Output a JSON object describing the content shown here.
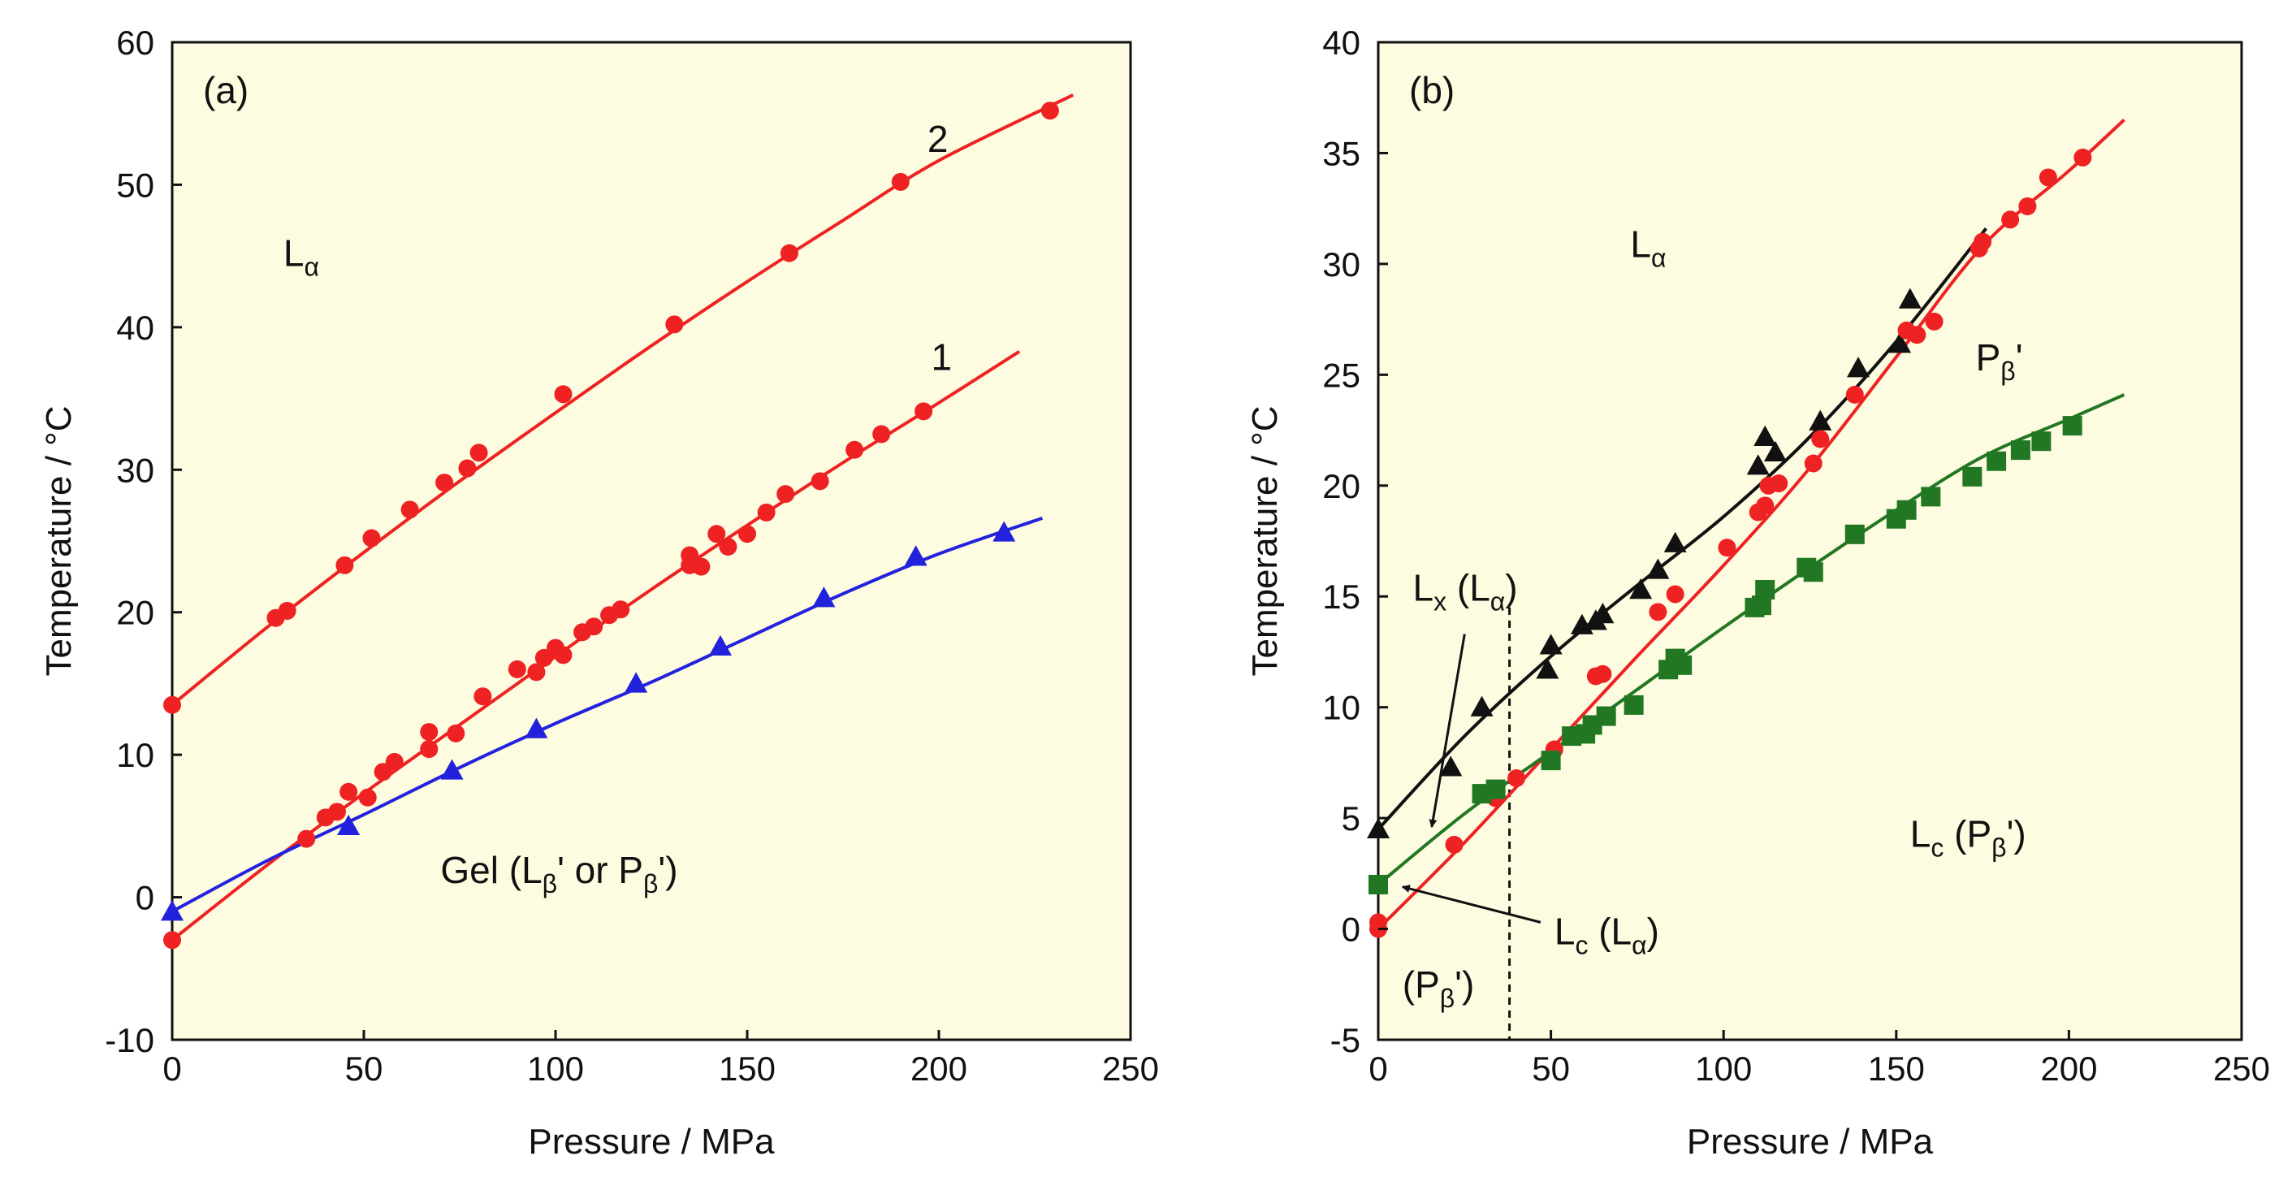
{
  "chart_data": [
    {
      "type": "scatter",
      "panel_label": "(a)",
      "xlabel": "Pressure / MPa",
      "ylabel": "Temperature / °C",
      "xlim": [
        0,
        250
      ],
      "ylim": [
        -10,
        60
      ],
      "x_ticks": [
        0,
        50,
        100,
        150,
        200,
        250
      ],
      "y_ticks": [
        -10,
        0,
        10,
        20,
        30,
        40,
        50,
        60
      ],
      "plot_background": "#fdfbe0",
      "series": [
        {
          "name": "2",
          "color": "#ee2222",
          "marker": "circle",
          "points": [
            [
              0,
              13.5
            ],
            [
              27,
              19.6
            ],
            [
              30,
              20.1
            ],
            [
              45,
              23.3
            ],
            [
              52,
              25.2
            ],
            [
              62,
              27.2
            ],
            [
              71,
              29.1
            ],
            [
              77,
              30.1
            ],
            [
              80,
              31.2
            ],
            [
              102,
              35.3
            ],
            [
              131,
              40.2
            ],
            [
              161,
              45.2
            ],
            [
              190,
              50.2
            ],
            [
              229,
              55.2
            ]
          ],
          "fit": [
            [
              0,
              13.5
            ],
            [
              25,
              19.0
            ],
            [
              50,
              24.2
            ],
            [
              75,
              29.2
            ],
            [
              100,
              34.0
            ],
            [
              125,
              38.7
            ],
            [
              150,
              43.2
            ],
            [
              175,
              47.5
            ],
            [
              200,
              51.7
            ],
            [
              235,
              56.3
            ]
          ]
        },
        {
          "name": "1",
          "color": "#ee2222",
          "marker": "circle",
          "points": [
            [
              0,
              -3.0
            ],
            [
              35,
              4.1
            ],
            [
              40,
              5.6
            ],
            [
              43,
              6.0
            ],
            [
              46,
              7.4
            ],
            [
              51,
              7.0
            ],
            [
              55,
              8.8
            ],
            [
              58,
              9.5
            ],
            [
              67,
              10.4
            ],
            [
              67,
              11.6
            ],
            [
              74,
              11.5
            ],
            [
              81,
              14.1
            ],
            [
              90,
              16.0
            ],
            [
              95,
              15.8
            ],
            [
              97,
              16.8
            ],
            [
              100,
              17.5
            ],
            [
              102,
              17.0
            ],
            [
              107,
              18.6
            ],
            [
              110,
              19.0
            ],
            [
              114,
              19.8
            ],
            [
              117,
              20.2
            ],
            [
              135,
              23.3
            ],
            [
              135,
              24.0
            ],
            [
              138,
              23.2
            ],
            [
              142,
              25.5
            ],
            [
              145,
              24.6
            ],
            [
              150,
              25.5
            ],
            [
              155,
              27.0
            ],
            [
              160,
              28.3
            ],
            [
              169,
              29.2
            ],
            [
              178,
              31.4
            ],
            [
              185,
              32.5
            ],
            [
              196,
              34.1
            ]
          ],
          "fit": [
            [
              0,
              -3.0
            ],
            [
              25,
              2.3
            ],
            [
              50,
              7.3
            ],
            [
              75,
              12.1
            ],
            [
              100,
              16.9
            ],
            [
              125,
              21.6
            ],
            [
              150,
              26.1
            ],
            [
              175,
              30.5
            ],
            [
              200,
              34.7
            ],
            [
              221,
              38.3
            ]
          ]
        },
        {
          "name": "",
          "color": "#2222dd",
          "marker": "triangle",
          "points": [
            [
              0,
              -1.0
            ],
            [
              46,
              5.0
            ],
            [
              73,
              8.9
            ],
            [
              95,
              11.8
            ],
            [
              121,
              15.0
            ],
            [
              143,
              17.6
            ],
            [
              170,
              21.0
            ],
            [
              194,
              23.9
            ],
            [
              217,
              25.6
            ]
          ],
          "fit": [
            [
              0,
              -1.0
            ],
            [
              25,
              2.6
            ],
            [
              50,
              5.8
            ],
            [
              75,
              9.1
            ],
            [
              100,
              12.2
            ],
            [
              125,
              15.1
            ],
            [
              150,
              18.2
            ],
            [
              175,
              21.3
            ],
            [
              200,
              24.1
            ],
            [
              227,
              26.6
            ]
          ]
        }
      ],
      "annotations": {
        "series_2_label": "2",
        "series_1_label": "1",
        "phase_top_main": "L",
        "phase_top_sub": "α",
        "phase_bottom_prefix": "Gel (L",
        "phase_bottom_sub1": "β",
        "phase_bottom_mid": "' or P",
        "phase_bottom_sub2": "β",
        "phase_bottom_suffix": "')"
      }
    },
    {
      "type": "scatter",
      "panel_label": "(b)",
      "xlabel": "Pressure / MPa",
      "ylabel": "Temperature / °C",
      "xlim": [
        0,
        250
      ],
      "ylim": [
        -5,
        40
      ],
      "x_ticks": [
        0,
        50,
        100,
        150,
        200,
        250
      ],
      "y_ticks": [
        -5,
        0,
        5,
        10,
        15,
        20,
        25,
        30,
        35,
        40
      ],
      "plot_background": "#fdfbe0",
      "dashed_vertical_x": 38,
      "series": [
        {
          "name": "black-triangles",
          "color": "#111111",
          "marker": "triangle",
          "points": [
            [
              0,
              4.5
            ],
            [
              21,
              7.3
            ],
            [
              30,
              10.0
            ],
            [
              49,
              11.7
            ],
            [
              50,
              12.8
            ],
            [
              59,
              13.7
            ],
            [
              63,
              13.9
            ],
            [
              65,
              14.2
            ],
            [
              76,
              15.3
            ],
            [
              81,
              16.2
            ],
            [
              86,
              17.4
            ],
            [
              110,
              20.9
            ],
            [
              112,
              22.2
            ],
            [
              115,
              21.5
            ],
            [
              128,
              22.9
            ],
            [
              139,
              25.3
            ],
            [
              151,
              26.4
            ],
            [
              154,
              28.4
            ]
          ],
          "fit": [
            [
              0,
              4.5
            ],
            [
              25,
              8.7
            ],
            [
              50,
              12.3
            ],
            [
              75,
              15.5
            ],
            [
              100,
              18.6
            ],
            [
              125,
              22.2
            ],
            [
              150,
              26.5
            ],
            [
              176,
              31.6
            ]
          ]
        },
        {
          "name": "red-circles",
          "color": "#ee2222",
          "marker": "circle",
          "points": [
            [
              0,
              0.3
            ],
            [
              0,
              0.0
            ],
            [
              22,
              3.8
            ],
            [
              34,
              5.9
            ],
            [
              40,
              6.8
            ],
            [
              51,
              8.1
            ],
            [
              63,
              11.4
            ],
            [
              65,
              11.5
            ],
            [
              81,
              14.3
            ],
            [
              86,
              15.1
            ],
            [
              101,
              17.2
            ],
            [
              110,
              18.8
            ],
            [
              112,
              19.1
            ],
            [
              113,
              20.0
            ],
            [
              116,
              20.1
            ],
            [
              126,
              21.0
            ],
            [
              128,
              22.1
            ],
            [
              138,
              24.1
            ],
            [
              153,
              27.0
            ],
            [
              156,
              26.8
            ],
            [
              161,
              27.4
            ],
            [
              174,
              30.7
            ],
            [
              175,
              31.0
            ],
            [
              183,
              32.0
            ],
            [
              188,
              32.6
            ],
            [
              194,
              33.9
            ],
            [
              204,
              34.8
            ]
          ],
          "fit": [
            [
              0,
              0.0
            ],
            [
              25,
              3.9
            ],
            [
              50,
              8.1
            ],
            [
              75,
              12.3
            ],
            [
              100,
              16.4
            ],
            [
              125,
              20.8
            ],
            [
              150,
              25.8
            ],
            [
              175,
              30.8
            ],
            [
              200,
              34.2
            ],
            [
              216,
              36.5
            ]
          ]
        },
        {
          "name": "green-squares",
          "color": "#227722",
          "marker": "square",
          "points": [
            [
              0,
              2.0
            ],
            [
              30,
              6.1
            ],
            [
              34,
              6.3
            ],
            [
              50,
              7.6
            ],
            [
              56,
              8.7
            ],
            [
              60,
              8.8
            ],
            [
              62,
              9.2
            ],
            [
              66,
              9.6
            ],
            [
              74,
              10.1
            ],
            [
              84,
              11.7
            ],
            [
              86,
              12.2
            ],
            [
              88,
              11.9
            ],
            [
              109,
              14.5
            ],
            [
              111,
              14.6
            ],
            [
              112,
              15.3
            ],
            [
              124,
              16.3
            ],
            [
              126,
              16.1
            ],
            [
              138,
              17.8
            ],
            [
              150,
              18.5
            ],
            [
              153,
              18.9
            ],
            [
              160,
              19.5
            ],
            [
              172,
              20.4
            ],
            [
              179,
              21.1
            ],
            [
              186,
              21.6
            ],
            [
              192,
              22.0
            ],
            [
              201,
              22.7
            ]
          ],
          "fit": [
            [
              0,
              2.0
            ],
            [
              25,
              5.2
            ],
            [
              50,
              8.0
            ],
            [
              75,
              10.8
            ],
            [
              100,
              13.6
            ],
            [
              125,
              16.3
            ],
            [
              150,
              18.9
            ],
            [
              175,
              21.3
            ],
            [
              200,
              23.0
            ],
            [
              216,
              24.1
            ]
          ]
        }
      ],
      "annotations": {
        "phase_top_main": "L",
        "phase_top_sub": "α",
        "pbeta_main": "P",
        "pbeta_sub": "β",
        "pbeta_suffix": "'",
        "lx_main": "L",
        "lx_sub1": "x",
        "lx_mid": " (L",
        "lx_sub2": "α",
        "lx_suffix": ")",
        "lc_alpha_main": "L",
        "lc_alpha_sub1": "c",
        "lc_alpha_mid": " (L",
        "lc_alpha_sub2": "α",
        "lc_alpha_suffix": ")",
        "lc_pbeta_main": "L",
        "lc_pbeta_sub1": "c",
        "lc_pbeta_mid": " (P",
        "lc_pbeta_sub2": "β",
        "lc_pbeta_suffix": "')",
        "bottom_pbeta_prefix": "(P",
        "bottom_pbeta_sub": "β",
        "bottom_pbeta_suffix": "')"
      }
    }
  ]
}
